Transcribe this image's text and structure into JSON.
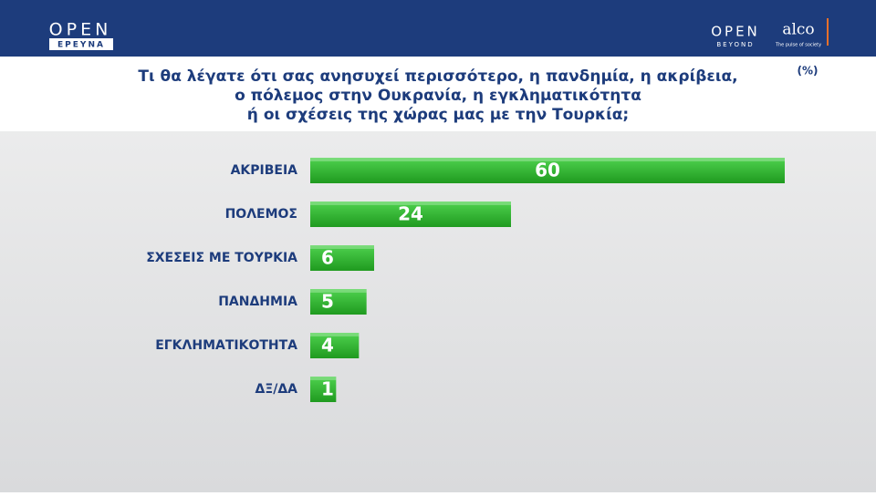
{
  "header": {
    "left_logo": "OPEN",
    "left_sublogo": "ΕΡΕΥΝΑ",
    "right_logo": "OPEN",
    "right_sublogo": "BEYOND",
    "partner_logo": "alco",
    "partner_tagline": "The pulse of society"
  },
  "chart_data": {
    "type": "hbar",
    "title": [
      "Τι θα λέγατε ότι σας ανησυχεί περισσότερο, η πανδημία, η ακρίβεια,",
      "ο πόλεμος στην Ουκρανία, η εγκληματικότητα",
      "ή οι σχέσεις της χώρας μας με την Τουρκία;"
    ],
    "unit": "(%)",
    "categories": [
      "ΑΚΡΙΒΕΙΑ",
      "ΠΟΛΕΜΟΣ",
      "ΣΧΕΣΕΙΣ ΜΕ ΤΟΥΡΚΙΑ",
      "ΠΑΝΔΗΜΙΑ",
      "ΕΓΚΛΗΜΑΤΙΚΟΤΗΤΑ",
      "ΔΞ/ΔΑ"
    ],
    "values": [
      60,
      24,
      6,
      5,
      4,
      1
    ],
    "color": "#2db82d"
  }
}
